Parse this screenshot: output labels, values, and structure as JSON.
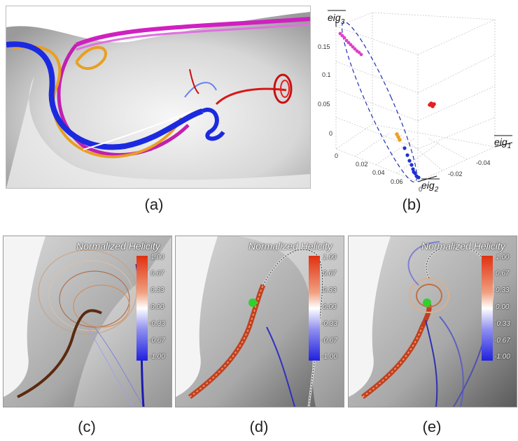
{
  "captions": {
    "a": "(a)",
    "b": "(b)",
    "c": "(c)",
    "d": "(d)",
    "e": "(e)"
  },
  "scatter3d": {
    "axes": {
      "x": "eig1",
      "y": "eig2",
      "z": "eig3"
    },
    "axis_names": {
      "eig1_base": "eig",
      "eig1_sub": "1",
      "eig2_base": "eig",
      "eig2_sub": "2",
      "eig3_base": "eig",
      "eig3_sub": "3"
    },
    "z_ticks": [
      "0.15",
      "0.1",
      "0.05",
      "0"
    ],
    "eig2_ticks": [
      "0",
      "0.02",
      "0.04",
      "0.06"
    ],
    "eig1_ticks": [
      "0",
      "-0.02",
      "-0.04"
    ],
    "clusters": [
      {
        "color": "#e040c8",
        "label": "magenta"
      },
      {
        "color": "#e52020",
        "label": "red"
      },
      {
        "color": "#f0a020",
        "label": "orange"
      },
      {
        "color": "#2030d0",
        "label": "blue"
      }
    ]
  },
  "helicity_panels": [
    {
      "title": "Normalized Helicity",
      "ticks": [
        "1.00",
        "0.67",
        "0.33",
        "0.00",
        "-0.33",
        "-0.67",
        "-1.00"
      ]
    },
    {
      "title": "Normalized Helicity",
      "ticks": [
        "1.00",
        "0.67",
        "0.33",
        "0.00",
        "-0.33",
        "-0.67",
        "-1.00"
      ]
    },
    {
      "title": "Normalized Helicity",
      "ticks": [
        "1.00",
        "0.67",
        "0.33",
        "0.00",
        "-0.33",
        "-0.67",
        "-1.00"
      ]
    }
  ],
  "colorbar": {
    "top": "#e03010",
    "mid": "#ffffff",
    "bottom": "#2020e0"
  }
}
